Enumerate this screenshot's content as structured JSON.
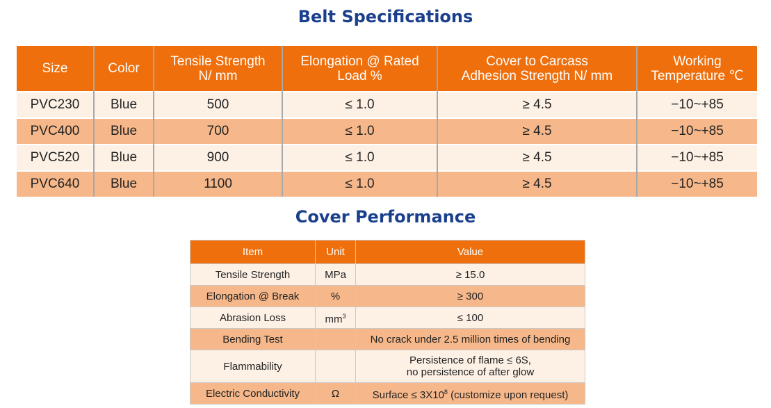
{
  "belt_specs": {
    "title": "Belt Specifications",
    "headers": [
      [
        "Size"
      ],
      [
        "Color"
      ],
      [
        "Tensile Strength",
        "N/ mm"
      ],
      [
        "Elongation @ Rated",
        "Load %"
      ],
      [
        "Cover to Carcass",
        "Adhesion Strength N/ mm"
      ],
      [
        "Working",
        "Temperature ℃"
      ]
    ],
    "rows": [
      [
        "PVC230",
        "Blue",
        "500",
        "≤ 1.0",
        "≥ 4.5",
        "−10~+85"
      ],
      [
        "PVC400",
        "Blue",
        "700",
        "≤ 1.0",
        "≥ 4.5",
        "−10~+85"
      ],
      [
        "PVC520",
        "Blue",
        "900",
        "≤ 1.0",
        "≥ 4.5",
        "−10~+85"
      ],
      [
        "PVC640",
        "Blue",
        "1100",
        "≤ 1.0",
        "≥ 4.5",
        "−10~+85"
      ]
    ]
  },
  "cover_performance": {
    "title": "Cover Performance",
    "headers": [
      "Item",
      "Unit",
      "Value"
    ],
    "rows": [
      {
        "item": "Tensile Strength",
        "unit": "MPa",
        "value": "≥ 15.0"
      },
      {
        "item": "Elongation @ Break",
        "unit": "%",
        "value": "≥ 300"
      },
      {
        "item": "Abrasion Loss",
        "unit": "mm",
        "unit_sup": "3",
        "value": "≤ 100"
      },
      {
        "item": "Bending Test",
        "unit": "",
        "value": "No crack under 2.5 million times of bending"
      },
      {
        "item": "Flammability",
        "unit": "",
        "value": "Persistence of flame ≤ 6S,",
        "value2": "no persistence of after glow"
      },
      {
        "item": "Electric Conductivity",
        "unit": "Ω",
        "value": "Surface ≤ 3X10",
        "value_sup": "8",
        "value_tail": " (customize upon request)"
      }
    ]
  },
  "colors": {
    "header_bg": "#ee6f0c",
    "row_light": "#fdf1e6",
    "row_dark": "#f6b88a",
    "title_blue": "#1a3f8c"
  }
}
